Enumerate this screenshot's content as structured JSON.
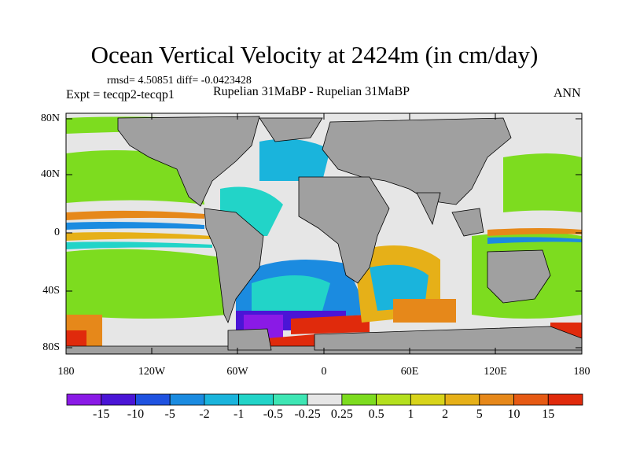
{
  "title": "Ocean Vertical Velocity at 2424m (in cm/day)",
  "stats": "rmsd= 4.50851 diff= -0.0423428",
  "experiment": "Expt = tecqp2-tecqp1",
  "period": "Rupelian  31MaBP - Rupelian  31MaBP",
  "season": "ANN",
  "map": {
    "projection": "cylindrical equidistant",
    "land_color": "#a0a0a0",
    "lat_ticks": [
      "80N",
      "40N",
      "0",
      "40S",
      "80S"
    ],
    "lon_ticks": [
      "180",
      "120W",
      "60W",
      "0",
      "60E",
      "120E",
      "180"
    ]
  },
  "colorbar": {
    "labels": [
      "-15",
      "-10",
      "-5",
      "-2",
      "-1",
      "-0.5",
      "-0.25",
      "0.25",
      "0.5",
      "1",
      "2",
      "5",
      "10",
      "15"
    ],
    "colors": [
      "#8a1ae6",
      "#4a15d6",
      "#1f52e0",
      "#1b8be0",
      "#1ab4dc",
      "#22d4c8",
      "#3ee6b4",
      "#e6e6e6",
      "#7ddc1f",
      "#b4e01e",
      "#d8d41a",
      "#e6b018",
      "#e6881a",
      "#e65a14",
      "#e02a0c"
    ]
  }
}
